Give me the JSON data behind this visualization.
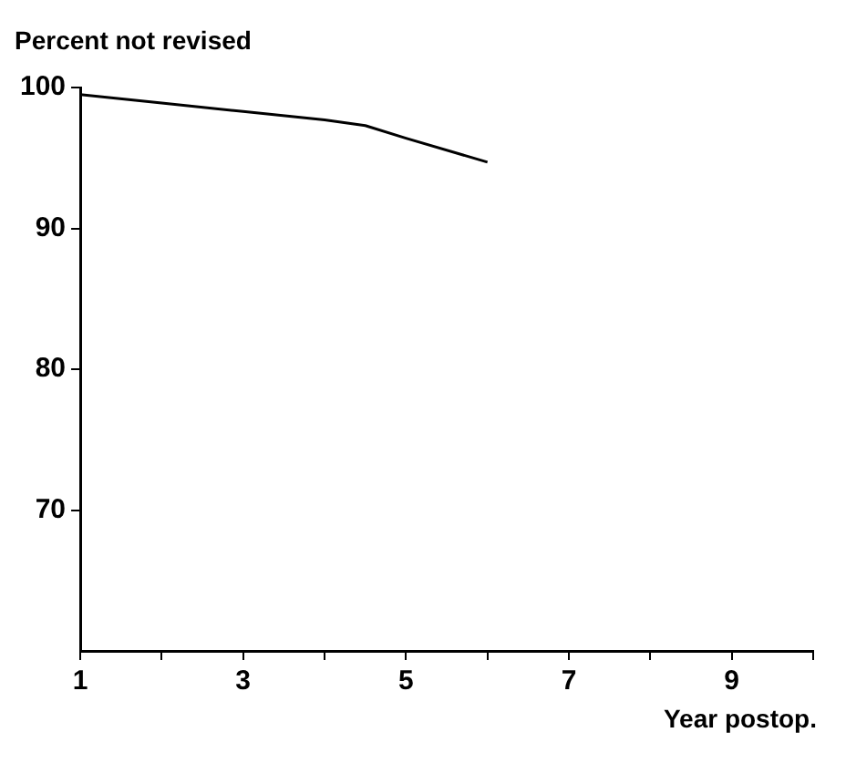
{
  "chart_data": {
    "type": "line",
    "ylabel": "Percent not revised",
    "xlabel": "Year postop.",
    "x": [
      1,
      2,
      3,
      4,
      4.5,
      5,
      6
    ],
    "series": [
      {
        "color": "#000000",
        "values": [
          99.5,
          98.9,
          98.3,
          97.7,
          97.3,
          96.4,
          94.7
        ]
      }
    ],
    "xlim": [
      1,
      10
    ],
    "xticks": [
      1,
      {
        "value": 2,
        "label": null
      },
      3,
      {
        "value": 4,
        "label": null
      },
      5,
      {
        "value": 6,
        "label": null
      },
      7,
      {
        "value": 8,
        "label": null
      },
      9,
      {
        "value": 10,
        "label": null
      }
    ],
    "ylim": [
      60,
      100
    ],
    "yticks": [
      70,
      80,
      90,
      100
    ],
    "grid": false,
    "legend": false,
    "marker": "none",
    "line_style": "solid"
  }
}
